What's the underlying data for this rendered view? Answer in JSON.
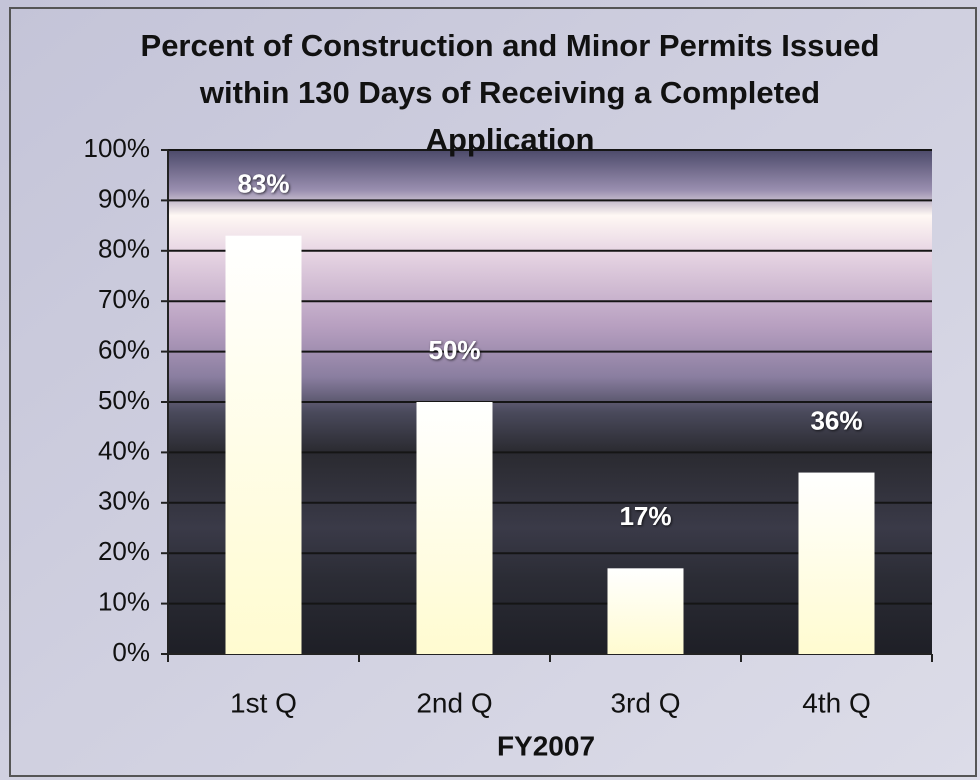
{
  "chart_data": {
    "type": "bar",
    "title": "Percent of Construction and Minor Permits Issued within 130 Days of Receiving a Completed Application",
    "x_label": "FY2007",
    "categories": [
      "1st Q",
      "2nd Q",
      "3rd Q",
      "4th Q"
    ],
    "values": [
      83,
      50,
      17,
      36
    ],
    "value_labels": [
      "83%",
      "50%",
      "17%",
      "36%"
    ],
    "color": "#fffbd0",
    "ylim": [
      0,
      100
    ],
    "yticks": [
      {
        "value": 0,
        "label": "0%"
      },
      {
        "value": 10,
        "label": "10%"
      },
      {
        "value": 20,
        "label": "20%"
      },
      {
        "value": 30,
        "label": "30%"
      },
      {
        "value": 40,
        "label": "40%"
      },
      {
        "value": 50,
        "label": "50%"
      },
      {
        "value": 60,
        "label": "60%"
      },
      {
        "value": 70,
        "label": "70%"
      },
      {
        "value": 80,
        "label": "80%"
      },
      {
        "value": 90,
        "label": "90%"
      },
      {
        "value": 100,
        "label": "100%"
      }
    ],
    "grid": true
  }
}
